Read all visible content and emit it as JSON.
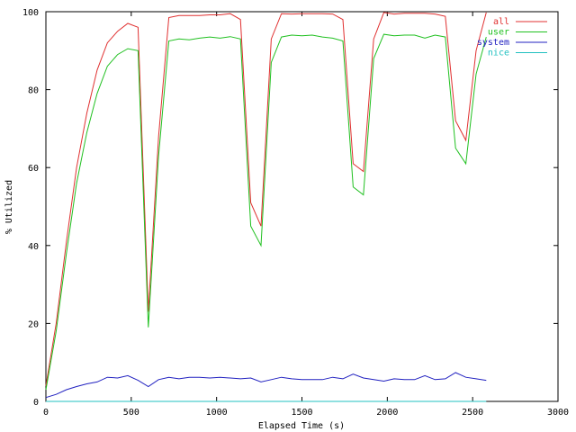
{
  "chart_data": {
    "type": "line",
    "xlabel": "Elapsed Time (s)",
    "ylabel": "% Utilized",
    "xlim": [
      0,
      3000
    ],
    "ylim": [
      0,
      100
    ],
    "xticks": [
      0,
      500,
      1000,
      1500,
      2000,
      2500,
      3000
    ],
    "yticks": [
      0,
      20,
      40,
      60,
      80,
      100
    ],
    "grid": false,
    "legend_position": "top-right",
    "series": [
      {
        "name": "all",
        "color": "#e03030",
        "x": [
          0,
          60,
          120,
          180,
          240,
          300,
          360,
          420,
          480,
          540,
          600,
          660,
          720,
          780,
          840,
          900,
          960,
          1020,
          1080,
          1140,
          1200,
          1260,
          1320,
          1380,
          1440,
          1500,
          1560,
          1620,
          1680,
          1740,
          1800,
          1860,
          1920,
          1980,
          2040,
          2100,
          2160,
          2220,
          2280,
          2340,
          2400,
          2460,
          2520,
          2580
        ],
        "y": [
          4,
          20,
          41,
          60,
          74,
          85,
          92,
          95,
          97,
          96,
          23,
          68,
          98.5,
          99,
          99,
          99,
          99.2,
          99.2,
          99.5,
          98,
          51,
          45,
          93,
          99.5,
          99.4,
          99.5,
          99.5,
          99.5,
          99.4,
          98,
          61,
          59,
          93,
          99.8,
          99.4,
          99.6,
          99.6,
          99.6,
          99.4,
          98.8,
          72,
          67,
          90,
          99.8
        ]
      },
      {
        "name": "user",
        "color": "#20c020",
        "x": [
          0,
          60,
          120,
          180,
          240,
          300,
          360,
          420,
          480,
          540,
          600,
          660,
          720,
          780,
          840,
          900,
          960,
          1020,
          1080,
          1140,
          1200,
          1260,
          1320,
          1380,
          1440,
          1500,
          1560,
          1620,
          1680,
          1740,
          1800,
          1860,
          1920,
          1980,
          2040,
          2100,
          2160,
          2220,
          2280,
          2340,
          2400,
          2460,
          2520,
          2580
        ],
        "y": [
          3,
          18,
          38,
          56,
          69,
          79,
          86,
          89,
          90.5,
          90,
          19,
          63,
          92.5,
          93,
          92.8,
          93.2,
          93.5,
          93.2,
          93.6,
          93,
          45,
          40,
          87,
          93.5,
          94,
          93.8,
          94,
          93.5,
          93.2,
          92.5,
          55,
          53,
          88,
          94.2,
          93.8,
          94,
          94,
          93.2,
          94,
          93.5,
          65,
          61,
          84,
          93.5
        ]
      },
      {
        "name": "system",
        "color": "#2020c0",
        "x": [
          0,
          60,
          120,
          180,
          240,
          300,
          360,
          420,
          480,
          540,
          600,
          660,
          720,
          780,
          840,
          900,
          960,
          1020,
          1080,
          1140,
          1200,
          1260,
          1320,
          1380,
          1440,
          1500,
          1560,
          1620,
          1680,
          1740,
          1800,
          1860,
          1920,
          1980,
          2040,
          2100,
          2160,
          2220,
          2280,
          2340,
          2400,
          2460,
          2520,
          2580
        ],
        "y": [
          1,
          1.8,
          3,
          3.8,
          4.5,
          5,
          6.2,
          6,
          6.6,
          5.4,
          3.8,
          5.6,
          6.2,
          5.8,
          6.2,
          6.2,
          6,
          6.2,
          6,
          5.8,
          6,
          5,
          5.6,
          6.2,
          5.8,
          5.6,
          5.6,
          5.6,
          6.2,
          5.8,
          7,
          6,
          5.6,
          5.2,
          5.8,
          5.6,
          5.6,
          6.6,
          5.6,
          5.8,
          7.4,
          6.2,
          5.8,
          5.4
        ]
      },
      {
        "name": "nice",
        "color": "#20c0c0",
        "x": [
          0,
          2580
        ],
        "y": [
          0,
          0
        ]
      }
    ]
  }
}
